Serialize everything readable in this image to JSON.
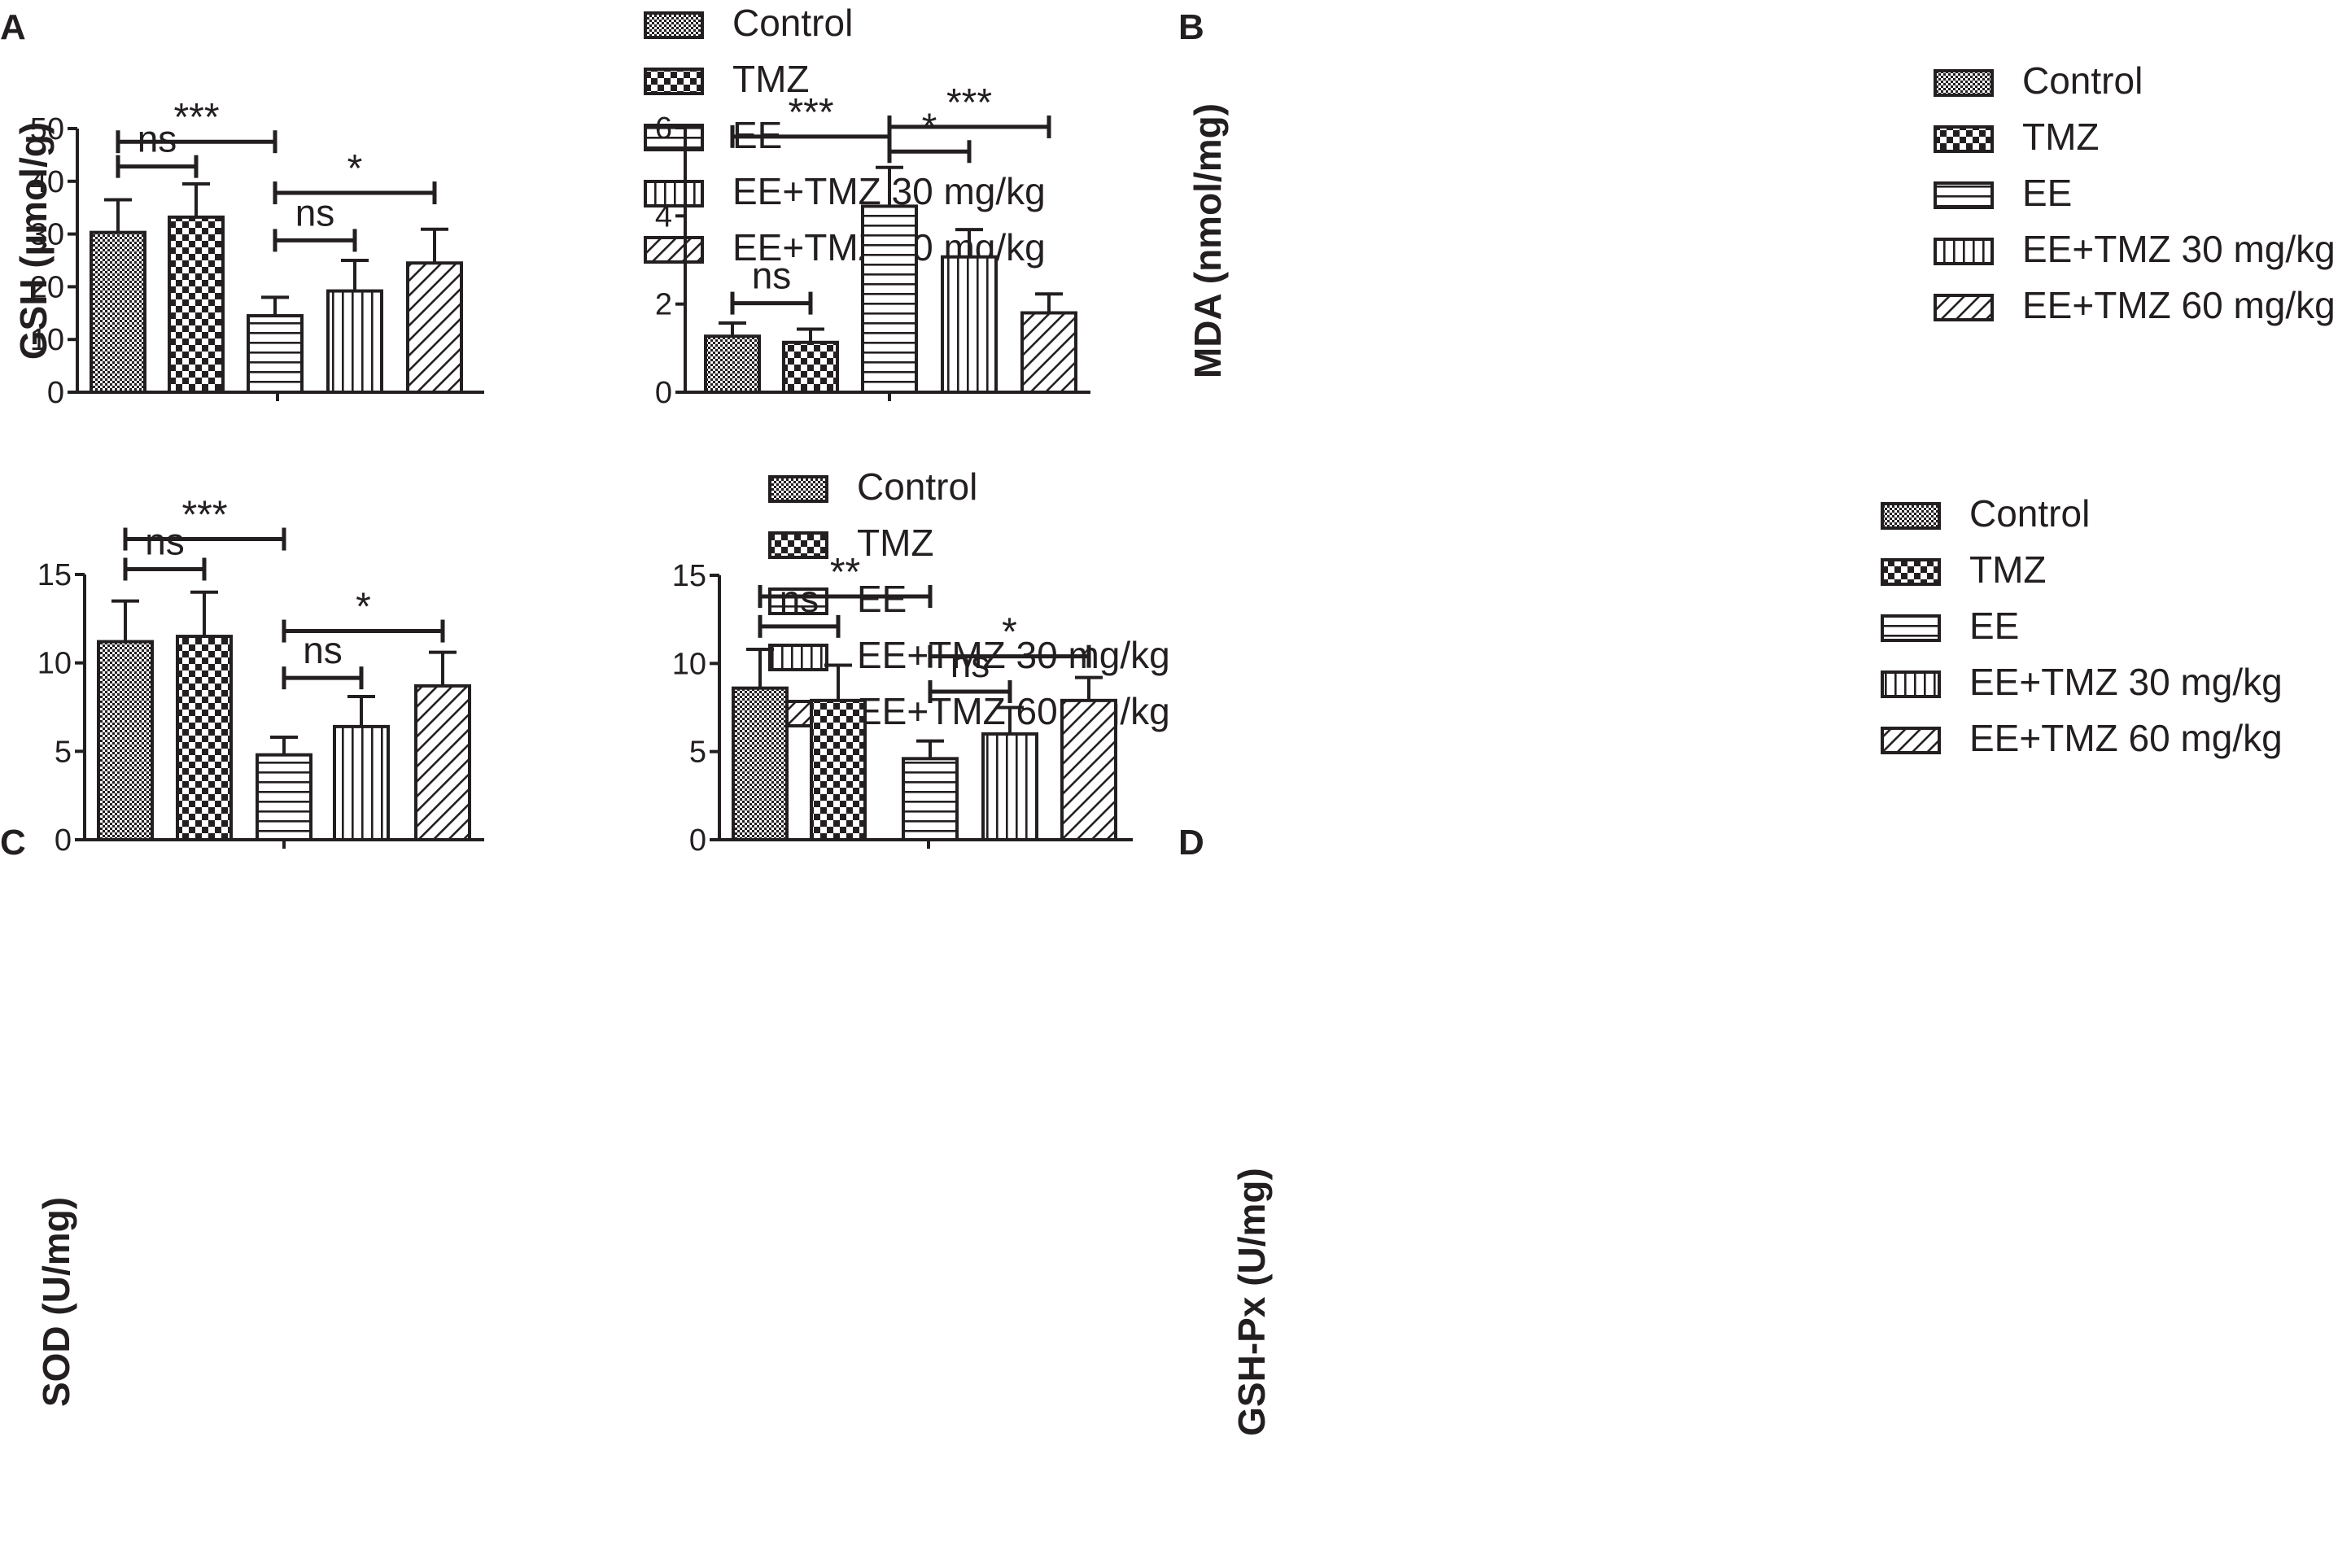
{
  "legend_labels": [
    "Control",
    "TMZ",
    "EE",
    "EE+TMZ 30 mg/kg",
    "EE+TMZ 60 mg/kg"
  ],
  "colors": {
    "ink": "#231f20",
    "background": "#ffffff"
  },
  "chart_data": [
    {
      "type": "bar",
      "panel": "A",
      "ylabel": "GSH (µmol/g)",
      "categories": [
        "Control",
        "TMZ",
        "EE",
        "EE+TMZ 30 mg/kg",
        "EE+TMZ 60 mg/kg"
      ],
      "values": [
        30.3,
        33.2,
        14.5,
        19.2,
        24.5
      ],
      "errors": [
        6.2,
        6.3,
        3.5,
        5.8,
        6.4
      ],
      "ylim": [
        0,
        50
      ],
      "yticks": [
        "0",
        "10",
        "20",
        "30",
        "40",
        "50"
      ],
      "legend_position": "top-right",
      "significance": [
        {
          "from": 0,
          "to": 2,
          "value": 47.5,
          "label": "***"
        },
        {
          "from": 0,
          "to": 1,
          "value": 42.8,
          "label": "ns"
        },
        {
          "from": 2,
          "to": 4,
          "value": 37.8,
          "label": "*"
        },
        {
          "from": 2,
          "to": 3,
          "value": 28.8,
          "label": "ns"
        }
      ]
    },
    {
      "type": "bar",
      "panel": "B",
      "ylabel": "MDA (nmol/mg)",
      "categories": [
        "Control",
        "TMZ",
        "EE",
        "EE+TMZ 30 mg/kg",
        "EE+TMZ 60 mg/kg"
      ],
      "values": [
        1.27,
        1.13,
        4.22,
        3.07,
        1.8
      ],
      "errors": [
        0.3,
        0.3,
        0.88,
        0.62,
        0.43
      ],
      "ylim": [
        0,
        6
      ],
      "yticks": [
        "0",
        "2",
        "4",
        "6"
      ],
      "legend_position": "top-right",
      "significance": [
        {
          "from": 0,
          "to": 2,
          "value": 5.8,
          "label": "***"
        },
        {
          "from": 2,
          "to": 4,
          "value": 6.02,
          "label": "***"
        },
        {
          "from": 2,
          "to": 3,
          "value": 5.46,
          "label": "*"
        },
        {
          "from": 0,
          "to": 1,
          "value": 2.02,
          "label": "ns"
        }
      ]
    },
    {
      "type": "bar",
      "panel": "C",
      "ylabel": "SOD (U/mg)",
      "categories": [
        "Control",
        "TMZ",
        "EE",
        "EE+TMZ 30 mg/kg",
        "EE+TMZ 60 mg/kg"
      ],
      "values": [
        11.2,
        11.5,
        4.8,
        6.4,
        8.7
      ],
      "errors": [
        2.3,
        2.5,
        1.0,
        1.7,
        1.9
      ],
      "ylim": [
        0,
        15
      ],
      "yticks": [
        "0",
        "5",
        "10",
        "15"
      ],
      "legend_position": "top-right",
      "significance": [
        {
          "from": 0,
          "to": 2,
          "value": 17.0,
          "label": "***"
        },
        {
          "from": 0,
          "to": 1,
          "value": 15.3,
          "label": "ns"
        },
        {
          "from": 2,
          "to": 4,
          "value": 11.8,
          "label": "*"
        },
        {
          "from": 2,
          "to": 3,
          "value": 9.15,
          "label": "ns"
        }
      ]
    },
    {
      "type": "bar",
      "panel": "D",
      "ylabel": "GSH-Px (U/mg)",
      "categories": [
        "Control",
        "TMZ",
        "EE",
        "EE+TMZ 30 mg/kg",
        "EE+TMZ 60 mg/kg"
      ],
      "values": [
        8.6,
        7.9,
        4.6,
        6.0,
        7.9
      ],
      "errors": [
        2.2,
        2.0,
        1.0,
        1.5,
        1.3
      ],
      "ylim": [
        0,
        15
      ],
      "yticks": [
        "0",
        "5",
        "10",
        "15"
      ],
      "legend_position": "top-right",
      "significance": [
        {
          "from": 0,
          "to": 2,
          "value": 13.8,
          "label": "**"
        },
        {
          "from": 0,
          "to": 1,
          "value": 12.1,
          "label": "ns"
        },
        {
          "from": 2,
          "to": 4,
          "value": 10.4,
          "label": "*"
        },
        {
          "from": 2,
          "to": 3,
          "value": 8.4,
          "label": "ns"
        }
      ]
    }
  ]
}
